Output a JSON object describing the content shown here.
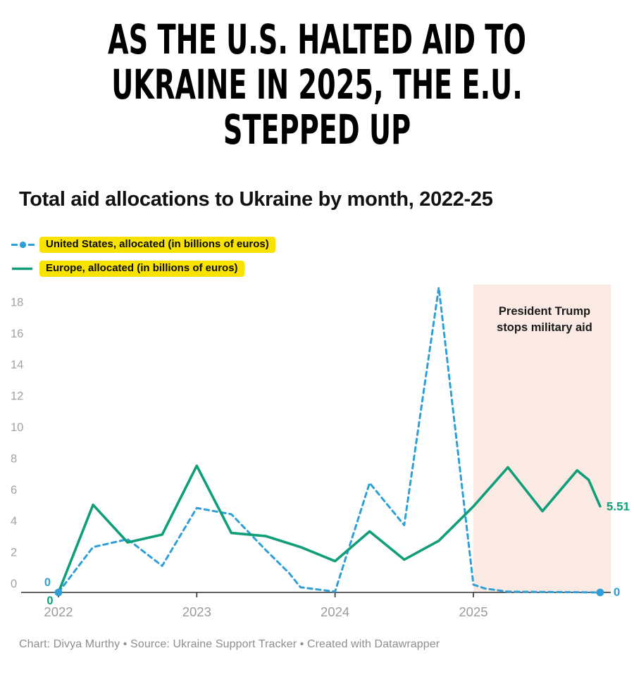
{
  "page": {
    "headline_lines": [
      "AS THE U.S. HALTED AID TO",
      "UKRAINE IN 2025, THE E.U.",
      "STEPPED UP"
    ],
    "footer": "Chart: Divya Murthy • Source: Ukraine Support Tracker • Created with Datawrapper"
  },
  "chart": {
    "title": "Total aid allocations to Ukraine by month, 2022-25",
    "legend": [
      {
        "label": "United States, allocated (in billions of euros)",
        "color": "#2e9fd7",
        "style": "dashed-with-dot"
      },
      {
        "label": "Europe, allocated (in billions of euros)",
        "color": "#109e78",
        "style": "solid"
      }
    ],
    "colors": {
      "us_blue": "#2e9fd7",
      "europe_teal": "#109e78",
      "legend_highlight_yellow": "#f8e300",
      "annotation_region_pink": "#fbe9e4",
      "axis_line": "#2e2e2e",
      "tick_label_gray": "#a2a2a2"
    }
  },
  "chart_data": {
    "type": "line",
    "title": "Total aid allocations to Ukraine by month, 2022-25",
    "x_unit": "months since Jan 2022",
    "x_tick_labels": [
      "2022",
      "2023",
      "2024",
      "2025"
    ],
    "x_tick_months": [
      0,
      12,
      24,
      36
    ],
    "y_ticks": [
      0,
      2,
      4,
      6,
      8,
      10,
      12,
      14,
      16,
      18
    ],
    "ylim": [
      0,
      19.6
    ],
    "xlim_months": [
      0,
      47
    ],
    "grid": "none",
    "legend_position": "top-left",
    "series": [
      {
        "name": "United States, allocated (in billions of euros)",
        "color": "#2e9fd7",
        "dash": true,
        "marker_endpoints": true,
        "start_label": "0",
        "end_label": "0",
        "points": [
          [
            0,
            0
          ],
          [
            3,
            2.9
          ],
          [
            6,
            3.4
          ],
          [
            9,
            1.7
          ],
          [
            12,
            5.4
          ],
          [
            15,
            5.0
          ],
          [
            18,
            2.7
          ],
          [
            20,
            1.25
          ],
          [
            21,
            0.33
          ],
          [
            24,
            0.05
          ],
          [
            27,
            7.0
          ],
          [
            30,
            4.3
          ],
          [
            33,
            19.5
          ],
          [
            36,
            0.5
          ],
          [
            37,
            0.25
          ],
          [
            39,
            0.05
          ],
          [
            47,
            0
          ]
        ]
      },
      {
        "name": "Europe, allocated (in billions of euros)",
        "color": "#109e78",
        "dash": false,
        "marker_endpoints": false,
        "start_label": "0",
        "end_label": "5.51",
        "points": [
          [
            0,
            0
          ],
          [
            3,
            5.6
          ],
          [
            6,
            3.2
          ],
          [
            9,
            3.7
          ],
          [
            12,
            8.1
          ],
          [
            15,
            3.8
          ],
          [
            18,
            3.6
          ],
          [
            21,
            2.9
          ],
          [
            24,
            2.0
          ],
          [
            27,
            3.9
          ],
          [
            30,
            2.1
          ],
          [
            33,
            3.3
          ],
          [
            36,
            5.5
          ],
          [
            39,
            8.0
          ],
          [
            42,
            5.2
          ],
          [
            45,
            7.8
          ],
          [
            46,
            7.2
          ],
          [
            47,
            5.51
          ]
        ]
      }
    ],
    "annotation": {
      "text_lines": [
        "President Trump",
        "stops military aid"
      ],
      "region_start_month": 36,
      "region_end_month": 47,
      "highlight_color": "#fbe9e4"
    }
  }
}
